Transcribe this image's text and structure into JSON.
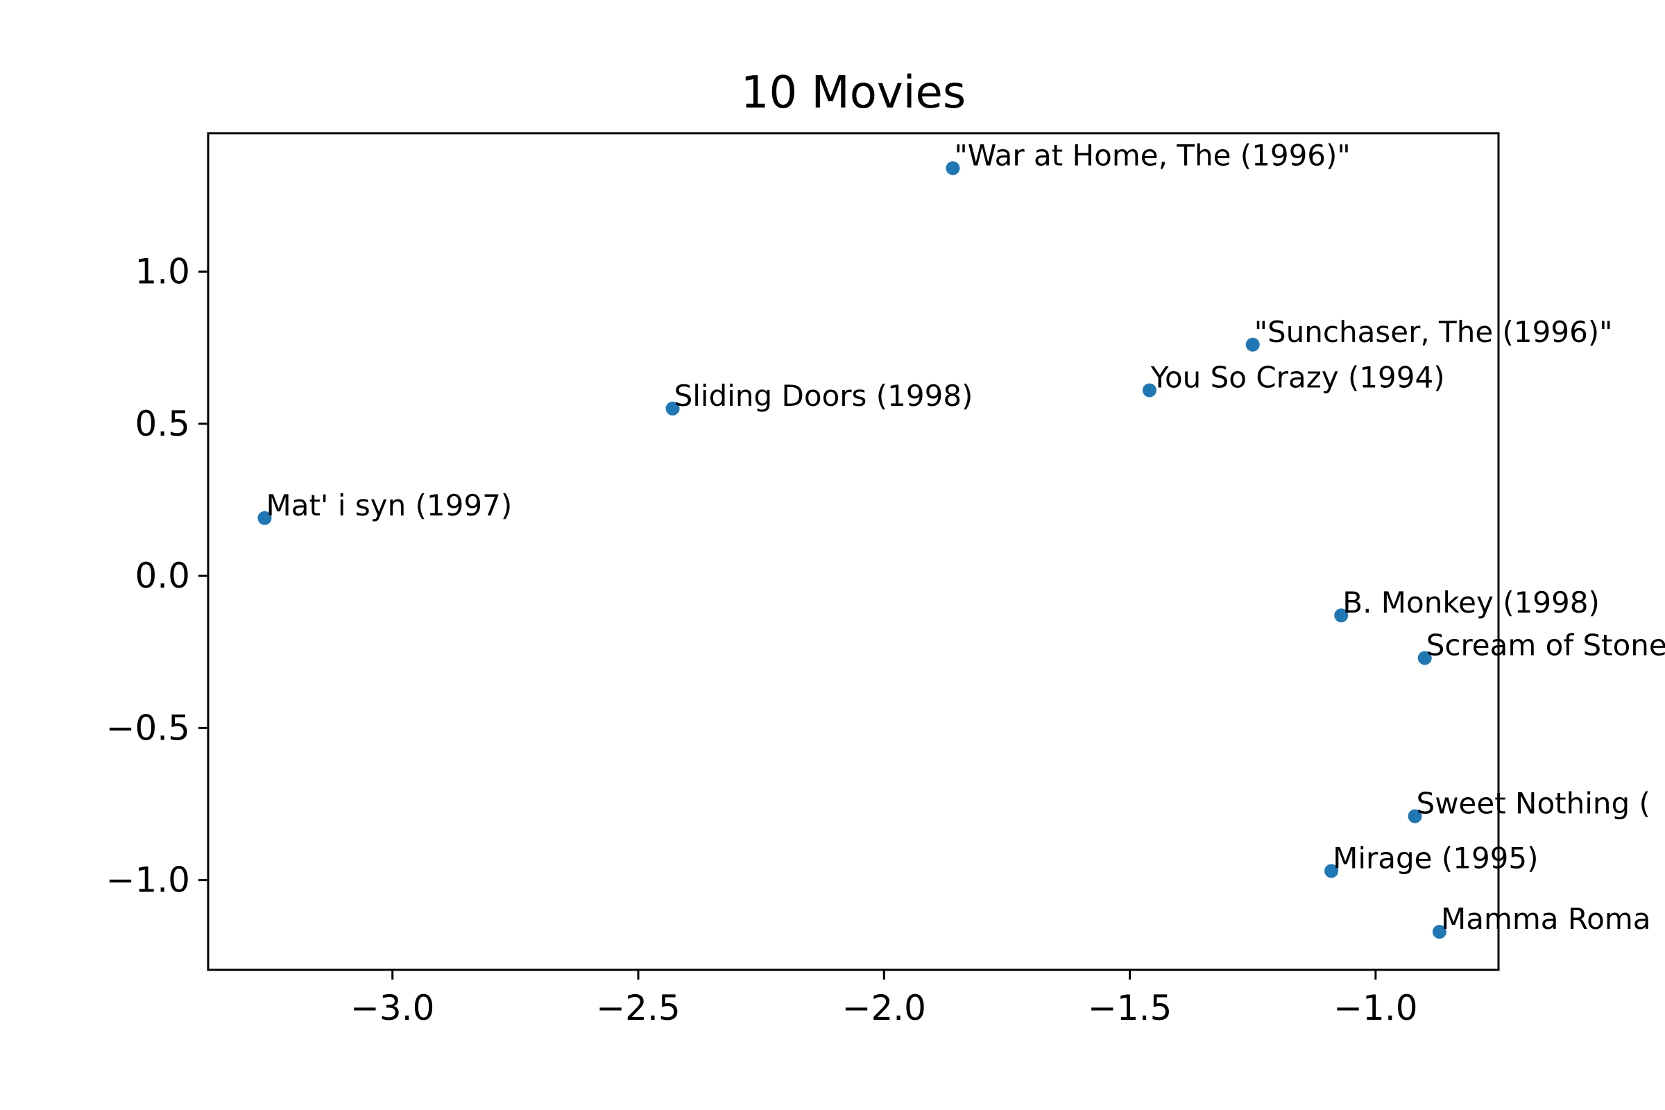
{
  "chart_data": {
    "type": "scatter",
    "title": "10 Movies",
    "xlabel": "",
    "ylabel": "",
    "xlim": [
      -3.375,
      -0.75
    ],
    "ylim": [
      -1.295,
      1.455
    ],
    "x_ticks": [
      -3.0,
      -2.5,
      -2.0,
      -1.5,
      -1.0
    ],
    "x_tick_labels": [
      "−3.0",
      "−2.5",
      "−2.0",
      "−1.5",
      "−1.0"
    ],
    "y_ticks": [
      1.0,
      0.5,
      0.0,
      -0.5,
      -1.0
    ],
    "y_tick_labels": [
      "1.0",
      "0.5",
      "0.0",
      "−0.5",
      "−1.0"
    ],
    "grid": false,
    "colors": {
      "point": "#1f77b4",
      "axes": "#000000"
    },
    "points": [
      {
        "label": "\"War at Home, The (1996)\"",
        "x": -1.86,
        "y": 1.34
      },
      {
        "label": "\"Sunchaser, The (1996)\"",
        "x": -1.25,
        "y": 0.76
      },
      {
        "label": "You So Crazy (1994)",
        "x": -1.46,
        "y": 0.61
      },
      {
        "label": "Sliding Doors (1998)",
        "x": -2.43,
        "y": 0.55
      },
      {
        "label": "Mat' i syn (1997)",
        "x": -3.26,
        "y": 0.19
      },
      {
        "label": "B. Monkey (1998)",
        "x": -1.07,
        "y": -0.13
      },
      {
        "label": "Scream of Stone",
        "x": -0.9,
        "y": -0.27
      },
      {
        "label": "Sweet Nothing (",
        "x": -0.92,
        "y": -0.79
      },
      {
        "label": "Mirage (1995)",
        "x": -1.09,
        "y": -0.97
      },
      {
        "label": "Mamma Roma",
        "x": -0.87,
        "y": -1.17
      }
    ]
  }
}
